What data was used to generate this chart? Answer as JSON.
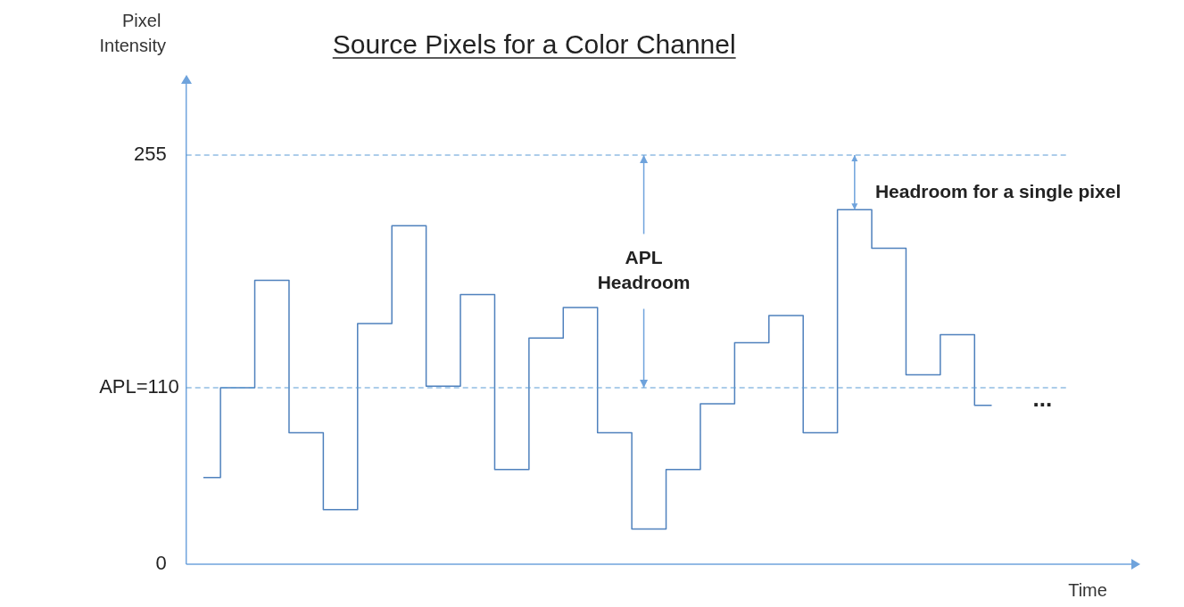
{
  "chart_data": {
    "type": "step",
    "title": "Source Pixels for a Color Channel",
    "xlabel": "Time",
    "ylabel": "Pixel Intensity",
    "categories": [
      null,
      null,
      null,
      null,
      null,
      null,
      null,
      null,
      null,
      null,
      null,
      null,
      null,
      null,
      null,
      null,
      null,
      null,
      null,
      null,
      null,
      null,
      null,
      null
    ],
    "values": [
      54,
      110,
      177,
      82,
      34,
      150,
      211,
      111,
      168,
      59,
      141,
      160,
      82,
      22,
      59,
      100,
      138,
      155,
      82,
      221,
      197,
      118,
      143,
      99
    ],
    "color": "#4f81bd",
    "ylim": [
      0,
      300
    ],
    "yticks": [
      0,
      255
    ],
    "ref_lines": [
      {
        "axis": "y",
        "value": 255,
        "color": "#5b9bd5",
        "line_style": "dashed"
      },
      {
        "axis": "y",
        "value": 110,
        "label": "APL=110",
        "color": "#5b9bd5",
        "line_style": "dashed"
      }
    ],
    "annotations": [
      "APL\nHeadroom",
      "Headroom for a single pixel",
      "..."
    ],
    "grid": false,
    "legend": false,
    "marker": "none",
    "line_style": "solid",
    "tick_labels": "y"
  }
}
